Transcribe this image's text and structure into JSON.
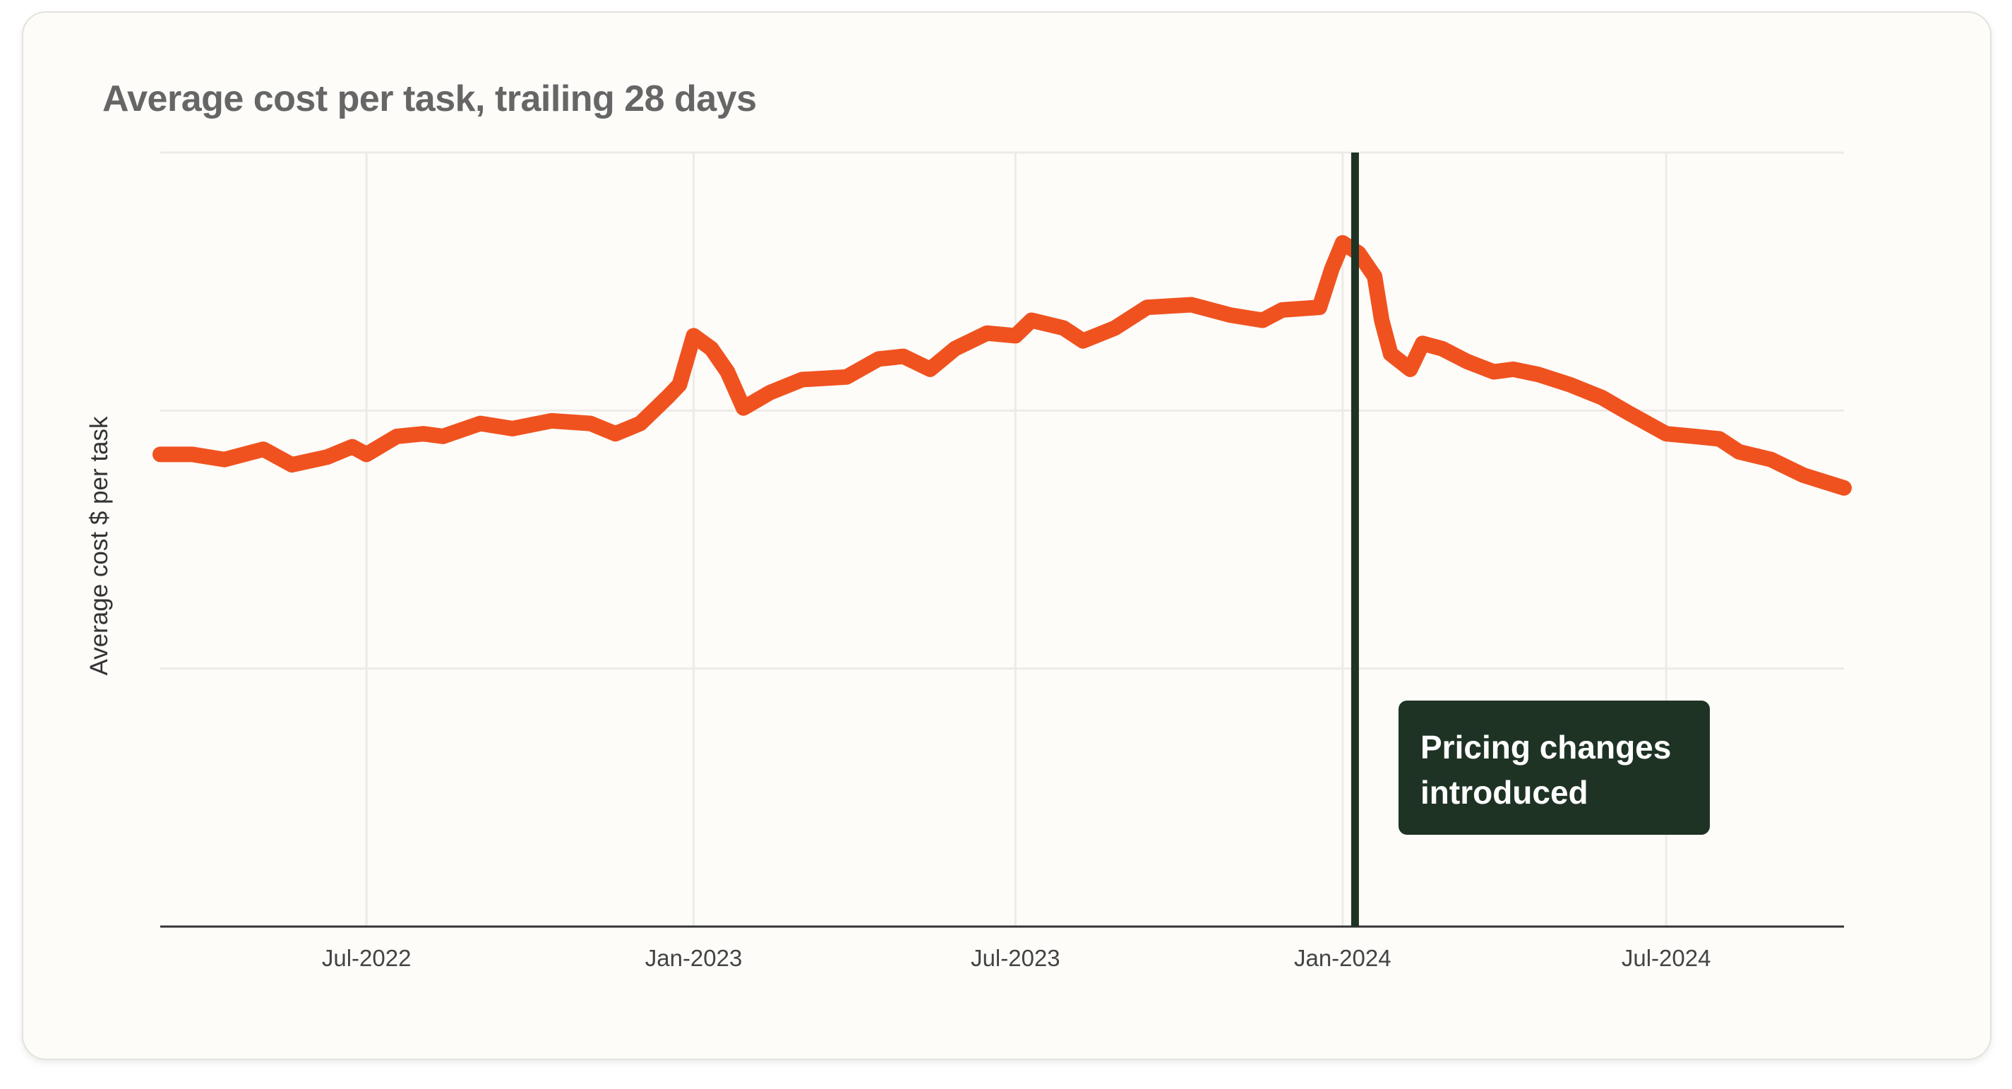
{
  "chart_data": {
    "type": "line",
    "title": "Average cost per task, trailing 28 days",
    "xlabel": "",
    "ylabel": "Average cost $ per task",
    "x_range": [
      "2022-03-07",
      "2024-10-09"
    ],
    "ylim": [
      0,
      3
    ],
    "y_tick_labels_shown": false,
    "grid": true,
    "x_ticks": [
      {
        "date": "2022-07-01",
        "label": "Jul-2022"
      },
      {
        "date": "2023-01-01",
        "label": "Jan-2023"
      },
      {
        "date": "2023-07-01",
        "label": "Jul-2023"
      },
      {
        "date": "2024-01-01",
        "label": "Jan-2024"
      },
      {
        "date": "2024-07-01",
        "label": "Jul-2024"
      }
    ],
    "y_grid": [
      1,
      2,
      3
    ],
    "line_color": "#f0521f",
    "series": [
      {
        "points": [
          [
            "2022-03-07",
            1.83
          ],
          [
            "2022-03-25",
            1.83
          ],
          [
            "2022-04-12",
            1.81
          ],
          [
            "2022-05-04",
            1.85
          ],
          [
            "2022-05-20",
            1.79
          ],
          [
            "2022-06-09",
            1.82
          ],
          [
            "2022-06-23",
            1.86
          ],
          [
            "2022-07-01",
            1.83
          ],
          [
            "2022-07-18",
            1.9
          ],
          [
            "2022-08-02",
            1.91
          ],
          [
            "2022-08-13",
            1.9
          ],
          [
            "2022-09-03",
            1.95
          ],
          [
            "2022-09-21",
            1.93
          ],
          [
            "2022-10-13",
            1.96
          ],
          [
            "2022-11-04",
            1.95
          ],
          [
            "2022-11-18",
            1.91
          ],
          [
            "2022-12-02",
            1.95
          ],
          [
            "2022-12-17",
            2.05
          ],
          [
            "2022-12-24",
            2.1
          ],
          [
            "2023-01-01",
            2.29
          ],
          [
            "2023-01-11",
            2.24
          ],
          [
            "2023-01-20",
            2.15
          ],
          [
            "2023-01-29",
            2.01
          ],
          [
            "2023-02-13",
            2.07
          ],
          [
            "2023-03-03",
            2.12
          ],
          [
            "2023-03-28",
            2.13
          ],
          [
            "2023-04-15",
            2.2
          ],
          [
            "2023-04-29",
            2.21
          ],
          [
            "2023-05-14",
            2.16
          ],
          [
            "2023-05-28",
            2.24
          ],
          [
            "2023-06-15",
            2.3
          ],
          [
            "2023-07-01",
            2.29
          ],
          [
            "2023-07-10",
            2.35
          ],
          [
            "2023-07-28",
            2.32
          ],
          [
            "2023-08-08",
            2.27
          ],
          [
            "2023-08-26",
            2.32
          ],
          [
            "2023-09-13",
            2.4
          ],
          [
            "2023-10-08",
            2.41
          ],
          [
            "2023-10-30",
            2.37
          ],
          [
            "2023-11-17",
            2.35
          ],
          [
            "2023-11-28",
            2.39
          ],
          [
            "2023-12-19",
            2.4
          ],
          [
            "2023-12-26",
            2.55
          ],
          [
            "2024-01-01",
            2.65
          ],
          [
            "2024-01-10",
            2.61
          ],
          [
            "2024-01-19",
            2.52
          ],
          [
            "2024-01-23",
            2.35
          ],
          [
            "2024-01-28",
            2.22
          ],
          [
            "2024-02-08",
            2.16
          ],
          [
            "2024-02-15",
            2.26
          ],
          [
            "2024-02-26",
            2.24
          ],
          [
            "2024-03-11",
            2.19
          ],
          [
            "2024-03-26",
            2.15
          ],
          [
            "2024-04-06",
            2.16
          ],
          [
            "2024-04-20",
            2.14
          ],
          [
            "2024-05-08",
            2.1
          ],
          [
            "2024-05-26",
            2.05
          ],
          [
            "2024-06-10",
            1.99
          ],
          [
            "2024-07-01",
            1.91
          ],
          [
            "2024-07-17",
            1.9
          ],
          [
            "2024-07-31",
            1.89
          ],
          [
            "2024-08-11",
            1.84
          ],
          [
            "2024-08-29",
            1.81
          ],
          [
            "2024-09-16",
            1.75
          ],
          [
            "2024-10-09",
            1.7
          ]
        ]
      }
    ],
    "annotations": [
      {
        "date": "2024-01-08",
        "type": "vertical-line",
        "color": "#1f3325",
        "label_lines": [
          "Pricing changes",
          "introduced"
        ]
      }
    ]
  }
}
